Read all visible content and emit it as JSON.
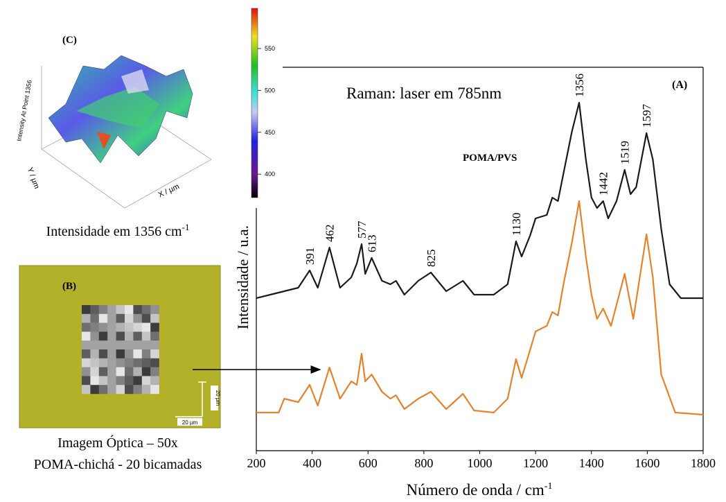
{
  "chart_data": {
    "type": "line",
    "title": "Raman: laser em 785nm",
    "subtitle": "POMA/PVS",
    "panel_label": "(A)",
    "ylabel": "Intensidade / u.a.",
    "xlabel": "Número de onda / cm",
    "xlabel_sup": "-1",
    "xlim": [
      200,
      1800
    ],
    "xticks": [
      200,
      400,
      600,
      800,
      1000,
      1200,
      1400,
      1600,
      1800
    ],
    "ylim": [
      0,
      553
    ],
    "peaks": [
      391,
      462,
      577,
      613,
      825,
      1130,
      1356,
      1442,
      1519,
      1597
    ],
    "series": [
      {
        "color": "#1a1a1a",
        "x": [
          200,
          250,
          300,
          350,
          391,
          420,
          462,
          500,
          540,
          560,
          577,
          590,
          613,
          650,
          680,
          700,
          730,
          780,
          825,
          880,
          940,
          980,
          1050,
          1100,
          1130,
          1150,
          1180,
          1200,
          1240,
          1260,
          1280,
          1300,
          1330,
          1356,
          1380,
          1400,
          1420,
          1442,
          1460,
          1490,
          1519,
          1540,
          1560,
          1597,
          1620,
          1650,
          1680,
          1720,
          1800
        ],
        "values": [
          220,
          225,
          230,
          235,
          260,
          235,
          293,
          235,
          250,
          270,
          298,
          255,
          278,
          245,
          240,
          245,
          225,
          245,
          257,
          230,
          245,
          225,
          225,
          240,
          302,
          280,
          310,
          335,
          340,
          365,
          360,
          400,
          460,
          502,
          420,
          365,
          350,
          360,
          335,
          360,
          405,
          370,
          380,
          458,
          420,
          320,
          240,
          220,
          220
        ]
      },
      {
        "color": "#e8822a",
        "x": [
          200,
          280,
          300,
          350,
          391,
          420,
          462,
          500,
          540,
          560,
          577,
          590,
          613,
          650,
          680,
          700,
          730,
          780,
          825,
          880,
          940,
          980,
          1050,
          1100,
          1130,
          1150,
          1180,
          1200,
          1240,
          1260,
          1280,
          1300,
          1330,
          1356,
          1380,
          1400,
          1420,
          1442,
          1470,
          1519,
          1550,
          1597,
          1620,
          1650,
          1700,
          1800
        ],
        "values": [
          55,
          55,
          75,
          70,
          95,
          65,
          120,
          75,
          100,
          95,
          140,
          100,
          110,
          85,
          75,
          80,
          60,
          75,
          85,
          60,
          82,
          58,
          55,
          75,
          132,
          105,
          145,
          172,
          180,
          200,
          195,
          240,
          300,
          360,
          280,
          225,
          190,
          205,
          180,
          255,
          190,
          312,
          250,
          110,
          55,
          52
        ]
      }
    ]
  },
  "panel_c": {
    "label": "(C)",
    "caption": "Intensidade em 1356 cm",
    "caption_sup": "-1",
    "zlabel": "Intensity At Point 1356",
    "ylabel": "Y / µm",
    "xlabel": "X / µm",
    "colorbar_lim": [
      372,
      598
    ],
    "colorbar_ticks": [
      400,
      450,
      500,
      550
    ]
  },
  "panel_b": {
    "label": "(B)",
    "scale_h": "20 µm",
    "scale_v": "20 µm",
    "caption_line1": "Imagem Óptica – 50x",
    "caption_line2": "POMA-chichá - 20 bicamadas"
  }
}
